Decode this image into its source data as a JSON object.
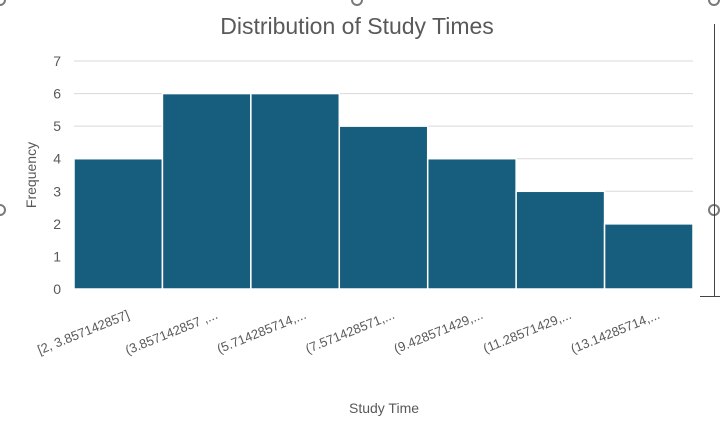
{
  "chart_data": {
    "type": "bar",
    "title": "Distribution of Study Times",
    "xlabel": "Study Time",
    "ylabel": "Frequency",
    "categories": [
      "[2, 3.857142857]",
      "(3.857142857 ,...",
      "(5.714285714,...",
      "(7.571428571,...",
      "(9.428571429,...",
      "(11.28571429,...",
      "(13.14285714,..."
    ],
    "values": [
      4,
      6,
      6,
      5,
      4,
      3,
      2
    ],
    "ylim": [
      0,
      7
    ],
    "yticks": [
      0,
      1,
      2,
      3,
      4,
      5,
      6,
      7
    ],
    "grid": true,
    "bar_color": "#175e7e",
    "grid_color": "#d9d9d9",
    "text_color": "#595959"
  }
}
